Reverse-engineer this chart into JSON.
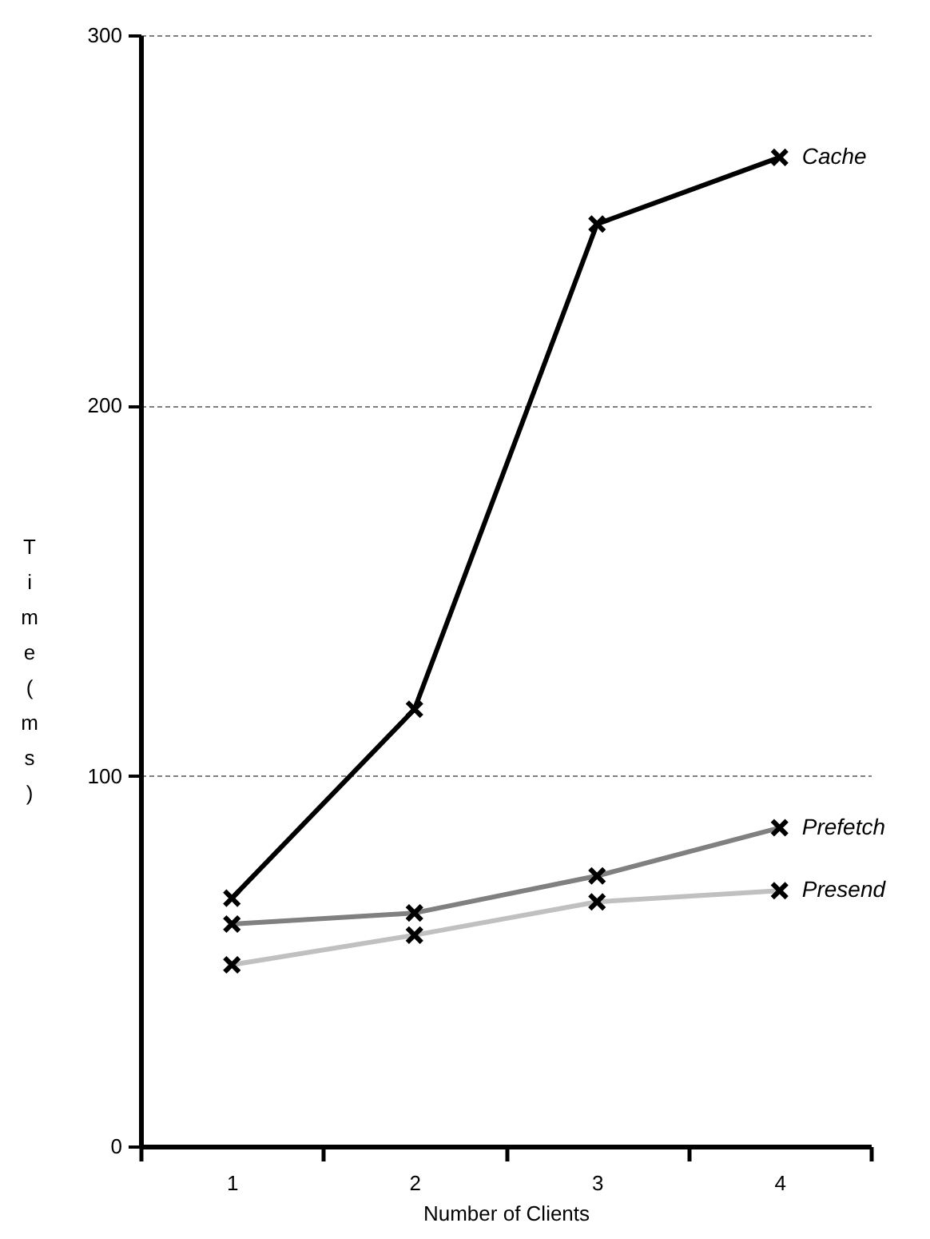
{
  "chart_data": {
    "type": "line",
    "xlabel": "Number of Clients",
    "ylabel": "Time (ms)",
    "categories": [
      "1",
      "2",
      "3",
      "4"
    ],
    "series": [
      {
        "name": "Cache",
        "color": "#000000",
        "values": [
          67,
          118,
          249,
          267
        ]
      },
      {
        "name": "Prefetch",
        "color": "#808080",
        "values": [
          60,
          63,
          73,
          86
        ]
      },
      {
        "name": "Presend",
        "color": "#c0c0c0",
        "values": [
          49,
          57,
          66,
          69
        ]
      }
    ],
    "ylim": [
      0,
      300
    ],
    "yticks": [
      0,
      100,
      200,
      300
    ],
    "grid": "y",
    "marker": "cross",
    "line_style": "solid"
  }
}
